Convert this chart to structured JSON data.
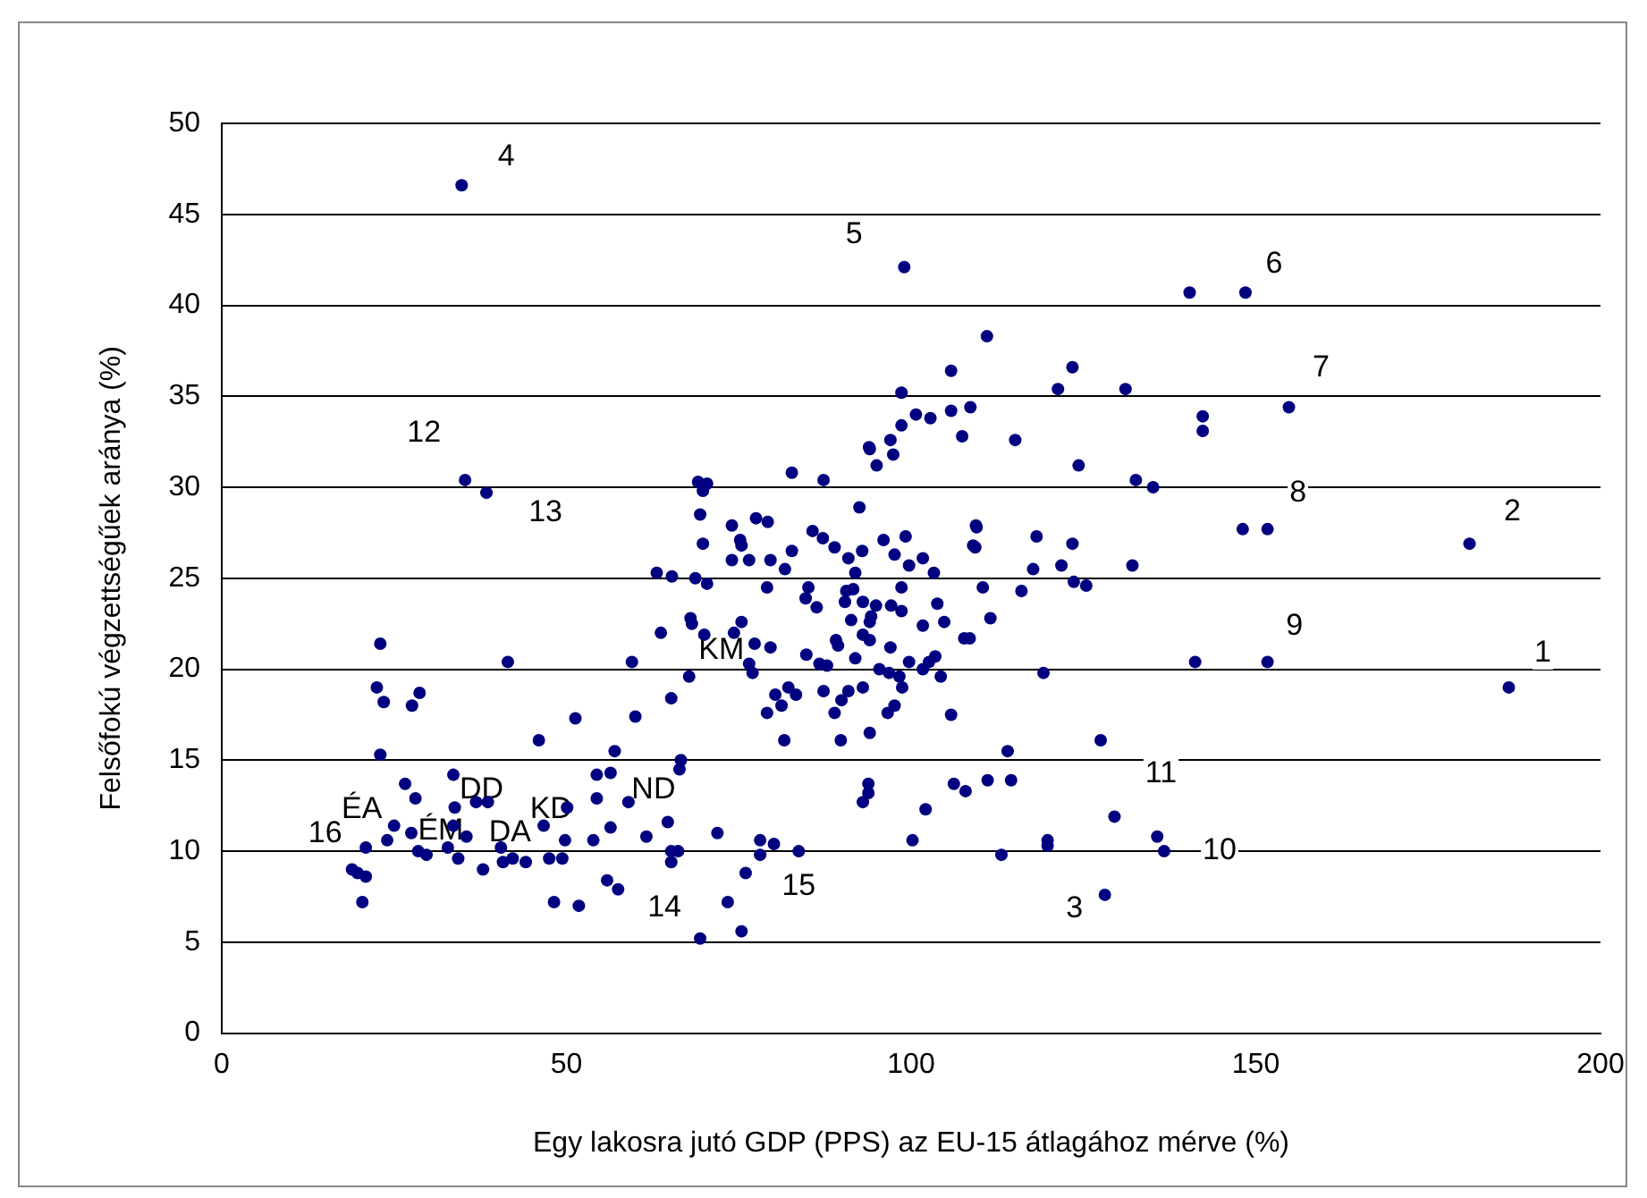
{
  "chart_data": {
    "type": "scatter",
    "xlabel": "Egy lakosra jutó GDP (PPS) az EU-15 átlagához mérve (%)",
    "ylabel": "Felsőfokú végzettségűek aránya (%)",
    "xlim": [
      0,
      200
    ],
    "xticks": [
      0,
      50,
      100,
      150,
      200
    ],
    "ylim": [
      0,
      50
    ],
    "yticks": [
      0,
      5,
      10,
      15,
      20,
      25,
      30,
      35,
      40,
      45,
      50
    ],
    "grid": "y",
    "legend": false,
    "marker": "circle",
    "series": [
      {
        "color": "#000080",
        "x": [
          23.0,
          22.5,
          23.5,
          28.7,
          27.6,
          23.0,
          41.5,
          26.6,
          28.1,
          25.0,
          24.0,
          20.9,
          18.9,
          20.9,
          19.7,
          20.4,
          27.5,
          28.5,
          29.7,
          33.6,
          33.8,
          33.6,
          35.5,
          32.8,
          34.3,
          37.9,
          36.9,
          38.6,
          40.5,
          40.8,
          42.2,
          44.1,
          46.0,
          46.7,
          47.5,
          49.4,
          49.8,
          50.1,
          51.3,
          48.2,
          51.8,
          53.9,
          54.4,
          56.4,
          54.4,
          56.4,
          57.0,
          55.9,
          57.5,
          59.5,
          60.0,
          63.7,
          65.2,
          59.0,
          61.6,
          64.7,
          65.2,
          65.2,
          66.2,
          66.6,
          82.7,
          87.3,
          94.0,
          95.0,
          97.4,
          69.1,
          70.4,
          69.8,
          69.4,
          69.8,
          92.5,
          74.0,
          77.5,
          79.2,
          75.2,
          75.4,
          74.0,
          76.5,
          79.6,
          82.7,
          81.7,
          85.7,
          87.2,
          88.9,
          90.9,
          92.9,
          91.9,
          96.0,
          99.2,
          97.6,
          99.7,
          101.7,
          103.3,
          109.4,
          109.0,
          110.4,
          116.0,
          63.1,
          65.3,
          68.7,
          70.4,
          79.1,
          85.1,
          84.7,
          86.3,
          90.6,
          90.4,
          91.6,
          93.0,
          94.9,
          97.1,
          98.6,
          98.6,
          103.8,
          104.8,
          101.7,
          91.3,
          94.2,
          94.0,
          111.5,
          107.7,
          108.5,
          68.0,
          68.2,
          70.0,
          75.4,
          74.3,
          77.3,
          79.6,
          76.5,
          77.0,
          67.8,
          84.8,
          86.7,
          87.8,
          89.1,
          89.4,
          91.9,
          93.0,
          94.0,
          97.0,
          99.7,
          102.6,
          103.5,
          101.7,
          104.3,
          95.4,
          96.8,
          98.3,
          98.7,
          87.3,
          82.2,
          80.3,
          83.3,
          81.2,
          79.1,
          90.9,
          93.0,
          89.9,
          88.9,
          96.6,
          97.6,
          105.8,
          81.6,
          89.8,
          94.0,
          114.0,
          66.4,
          93.8,
          93.8,
          93.0,
          102.1,
          106.2,
          107.9,
          111.1,
          114.5,
          100.2,
          113.1,
          71.9,
          78.1,
          78.1,
          80.1,
          83.7,
          76.0,
          73.4,
          75.4,
          69.4,
          140.4,
          148.5,
          111.0,
          123.4,
          121.3,
          131.1,
          108.6,
          142.3,
          142.3,
          154.8,
          115.1,
          124.3,
          132.6,
          135.1,
          148.1,
          151.7,
          109.5,
          109.3,
          118.2,
          123.4,
          117.7,
          121.8,
          132.1,
          123.6,
          125.4,
          34.8,
          99.0,
          105.8,
          98.6,
          100.7,
          102.8,
          105.8,
          107.4,
          98.6,
          97.0,
          93.9,
          35.3,
          38.4,
          181.0,
          151.7,
          186.7,
          141.2,
          119.2,
          127.5,
          129.5,
          135.7,
          136.7,
          119.8,
          119.8,
          128.1
        ],
        "values": [
          21.4,
          19.0,
          18.2,
          18.7,
          18.0,
          15.3,
          20.4,
          13.7,
          12.9,
          11.4,
          10.6,
          10.2,
          9.0,
          8.6,
          8.8,
          7.2,
          11.0,
          10.0,
          9.8,
          14.2,
          12.4,
          11.4,
          10.8,
          10.2,
          9.6,
          9.0,
          12.7,
          12.7,
          10.2,
          9.4,
          9.6,
          9.4,
          16.1,
          11.4,
          9.6,
          9.6,
          10.6,
          12.4,
          17.3,
          7.2,
          7.0,
          10.6,
          14.2,
          14.3,
          12.9,
          11.3,
          15.5,
          8.4,
          7.9,
          20.4,
          17.4,
          22.0,
          18.4,
          12.7,
          10.8,
          11.6,
          10.0,
          9.4,
          10.0,
          15.0,
          30.8,
          30.4,
          32.1,
          31.2,
          31.8,
          30.3,
          30.2,
          29.8,
          28.5,
          26.9,
          28.9,
          27.9,
          28.3,
          28.1,
          27.1,
          26.8,
          26.0,
          26.0,
          26.0,
          26.5,
          25.5,
          27.6,
          27.2,
          26.7,
          26.1,
          26.5,
          25.3,
          27.1,
          27.3,
          26.3,
          25.7,
          26.1,
          25.3,
          27.9,
          26.8,
          24.5,
          24.3,
          25.3,
          25.1,
          25.0,
          24.7,
          24.5,
          24.5,
          23.9,
          23.4,
          24.3,
          23.7,
          24.4,
          23.7,
          23.5,
          23.5,
          24.5,
          23.2,
          23.6,
          22.6,
          22.4,
          22.7,
          22.9,
          22.6,
          22.8,
          21.7,
          21.7,
          22.8,
          22.5,
          21.9,
          22.6,
          22.0,
          21.4,
          21.2,
          20.3,
          19.8,
          19.6,
          20.8,
          20.3,
          20.2,
          21.6,
          21.3,
          20.6,
          21.9,
          21.6,
          21.2,
          20.4,
          20.4,
          20.7,
          20.0,
          19.6,
          20.0,
          19.8,
          19.6,
          19.0,
          18.8,
          19.0,
          18.6,
          18.6,
          18.0,
          17.6,
          18.8,
          19.0,
          18.3,
          17.6,
          17.6,
          18.0,
          17.5,
          16.1,
          16.1,
          16.5,
          15.5,
          14.5,
          13.7,
          13.2,
          12.7,
          12.3,
          13.7,
          13.3,
          13.9,
          13.9,
          10.6,
          9.8,
          11.0,
          10.6,
          9.8,
          10.4,
          10.0,
          8.8,
          7.2,
          5.6,
          5.2,
          40.7,
          40.7,
          38.3,
          36.6,
          35.4,
          35.4,
          34.4,
          33.9,
          33.1,
          34.4,
          32.6,
          31.2,
          30.4,
          30.0,
          27.7,
          27.7,
          27.8,
          26.7,
          27.3,
          26.9,
          25.5,
          25.7,
          25.7,
          24.8,
          24.6,
          46.6,
          42.1,
          36.4,
          35.2,
          34.0,
          33.8,
          34.2,
          32.8,
          33.4,
          32.6,
          32.2,
          30.4,
          29.7,
          26.9,
          20.4,
          19.0,
          20.4,
          19.8,
          16.1,
          11.9,
          10.8,
          10.0,
          10.6,
          10.3,
          7.6
        ]
      }
    ],
    "annotations": [
      {
        "text": "1",
        "x": 186.7,
        "y": 19.0
      },
      {
        "text": "2",
        "x": 181.0,
        "y": 26.9
      },
      {
        "text": "3",
        "x": 128.1,
        "y": 7.6
      },
      {
        "text": "4",
        "x": 34.8,
        "y": 46.6
      },
      {
        "text": "5",
        "x": 99.0,
        "y": 42.1
      },
      {
        "text": "6",
        "x": 148.5,
        "y": 40.7
      },
      {
        "text": "7",
        "x": 154.8,
        "y": 34.4
      },
      {
        "text": "8",
        "x": 151.7,
        "y": 27.7
      },
      {
        "text": "9",
        "x": 151.7,
        "y": 20.4
      },
      {
        "text": "10",
        "x": 136.7,
        "y": 10.0
      },
      {
        "text": "11",
        "x": 129.5,
        "y": 11.9
      },
      {
        "text": "12",
        "x": 35.3,
        "y": 30.4
      },
      {
        "text": "13",
        "x": 38.4,
        "y": 29.7
      },
      {
        "text": "14",
        "x": 69.4,
        "y": 5.2
      },
      {
        "text": "15",
        "x": 83.7,
        "y": 10.0
      },
      {
        "text": "16",
        "x": 18.9,
        "y": 9.0
      },
      {
        "text": "KM",
        "x": 74.3,
        "y": 22.0
      },
      {
        "text": "ND",
        "x": 59.0,
        "y": 12.7
      },
      {
        "text": "KD",
        "x": 50.1,
        "y": 12.4
      },
      {
        "text": "DD",
        "x": 36.9,
        "y": 12.7
      },
      {
        "text": "DA",
        "x": 40.5,
        "y": 10.2
      },
      {
        "text": "ÉA",
        "x": 25.0,
        "y": 11.4
      },
      {
        "text": "ÉM",
        "x": 32.8,
        "y": 10.2
      }
    ]
  }
}
